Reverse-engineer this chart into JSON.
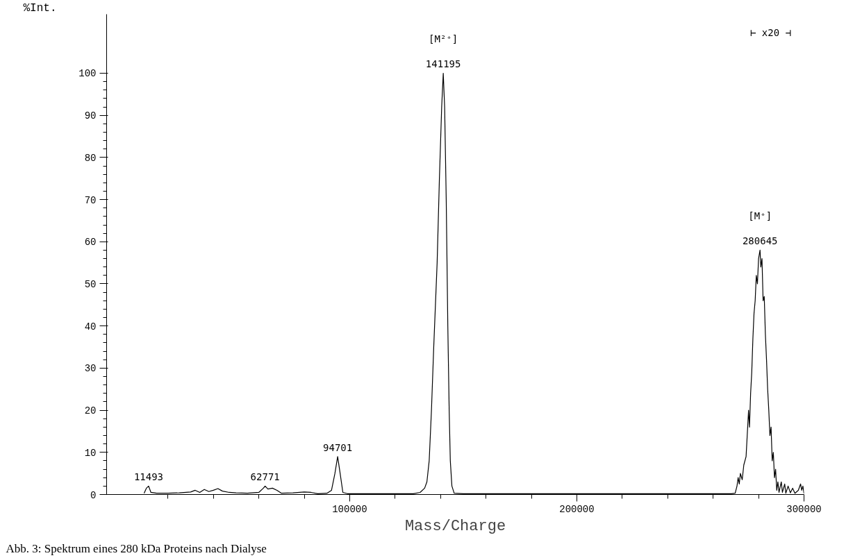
{
  "chart_data": {
    "type": "line",
    "xlabel": "Mass/Charge",
    "ylabel": "%Int.",
    "x": [
      9500,
      10500,
      11493,
      12500,
      15000,
      20000,
      25000,
      30000,
      32000,
      34000,
      36000,
      38000,
      40000,
      42000,
      44000,
      47000,
      50000,
      55000,
      60000,
      62000,
      62771,
      64000,
      66000,
      68000,
      70000,
      75000,
      80000,
      83000,
      86000,
      90000,
      92000,
      93500,
      94701,
      95800,
      97000,
      99000,
      110000,
      120000,
      128000,
      131000,
      133000,
      134000,
      135000,
      136000,
      137000,
      138500,
      139500,
      140500,
      141195,
      141800,
      142500,
      143200,
      143800,
      144300,
      145000,
      146000,
      150000,
      175000,
      200000,
      250000,
      268000,
      269700,
      270500,
      271000,
      271500,
      272000,
      272800,
      273500,
      274500,
      275000,
      275600,
      276000,
      276500,
      277000,
      277500,
      278000,
      278500,
      279000,
      279500,
      280000,
      280645,
      281000,
      281500,
      282000,
      282500,
      283000,
      283500,
      284000,
      284500,
      285000,
      285500,
      286000,
      286500,
      287000,
      287500,
      288000,
      288500,
      289000,
      290000,
      290500,
      291500,
      292000,
      293000,
      294000,
      295000,
      296000,
      297500,
      298500,
      299000,
      299500,
      300000
    ],
    "series": [
      {
        "color": "#000000",
        "values": [
          0.3,
          1.5,
          2.0,
          0.5,
          0.3,
          0.3,
          0.4,
          0.6,
          1.0,
          0.5,
          1.2,
          0.7,
          1.0,
          1.4,
          0.8,
          0.5,
          0.4,
          0.3,
          0.5,
          1.5,
          2.0,
          1.3,
          1.5,
          1.0,
          0.3,
          0.4,
          0.6,
          0.5,
          0.2,
          0.3,
          1.0,
          5.0,
          9.0,
          5.0,
          0.5,
          0.2,
          0.2,
          0.2,
          0.2,
          0.5,
          1.5,
          3,
          8,
          20,
          35,
          55,
          75,
          92,
          100,
          92,
          70,
          40,
          20,
          8,
          2,
          0.3,
          0.2,
          0.2,
          0.2,
          0.2,
          0.2,
          0.3,
          2,
          4,
          2.5,
          5,
          3.5,
          7,
          9,
          14,
          20,
          16,
          24,
          29,
          37,
          43,
          46,
          52,
          50,
          56,
          58,
          54,
          56,
          46,
          47,
          38,
          32,
          25,
          20,
          14,
          16,
          8,
          10,
          4,
          6,
          1,
          3,
          0.5,
          3,
          0.5,
          2.5,
          0.3,
          2,
          0.4,
          1.5,
          0.3,
          1,
          2.5,
          1,
          2,
          0.2
        ]
      }
    ],
    "xlim": [
      -7000,
      300000
    ],
    "xticks": [
      {
        "value": 20000,
        "label": null
      },
      {
        "value": 40000,
        "label": null
      },
      {
        "value": 60000,
        "label": null
      },
      {
        "value": 80000,
        "label": null
      },
      100000,
      {
        "value": 120000,
        "label": null
      },
      {
        "value": 140000,
        "label": null
      },
      {
        "value": 160000,
        "label": null
      },
      {
        "value": 180000,
        "label": null
      },
      200000,
      {
        "value": 220000,
        "label": null
      },
      {
        "value": 240000,
        "label": null
      },
      {
        "value": 260000,
        "label": null
      },
      {
        "value": 280000,
        "label": null
      },
      300000
    ],
    "ylim": [
      0,
      114
    ],
    "yticks": [
      0,
      {
        "value": 2,
        "label": null
      },
      {
        "value": 4,
        "label": null
      },
      {
        "value": 6,
        "label": null
      },
      {
        "value": 8,
        "label": null
      },
      10,
      {
        "value": 12,
        "label": null
      },
      {
        "value": 14,
        "label": null
      },
      {
        "value": 16,
        "label": null
      },
      {
        "value": 18,
        "label": null
      },
      20,
      {
        "value": 22,
        "label": null
      },
      {
        "value": 24,
        "label": null
      },
      {
        "value": 26,
        "label": null
      },
      {
        "value": 28,
        "label": null
      },
      30,
      {
        "value": 32,
        "label": null
      },
      {
        "value": 34,
        "label": null
      },
      {
        "value": 36,
        "label": null
      },
      {
        "value": 38,
        "label": null
      },
      40,
      {
        "value": 42,
        "label": null
      },
      {
        "value": 44,
        "label": null
      },
      {
        "value": 46,
        "label": null
      },
      {
        "value": 48,
        "label": null
      },
      50,
      {
        "value": 52,
        "label": null
      },
      {
        "value": 54,
        "label": null
      },
      {
        "value": 56,
        "label": null
      },
      {
        "value": 58,
        "label": null
      },
      60,
      {
        "value": 62,
        "label": null
      },
      {
        "value": 64,
        "label": null
      },
      {
        "value": 66,
        "label": null
      },
      {
        "value": 68,
        "label": null
      },
      70,
      {
        "value": 72,
        "label": null
      },
      {
        "value": 74,
        "label": null
      },
      {
        "value": 76,
        "label": null
      },
      {
        "value": 78,
        "label": null
      },
      80,
      {
        "value": 82,
        "label": null
      },
      {
        "value": 84,
        "label": null
      },
      {
        "value": 86,
        "label": null
      },
      {
        "value": 88,
        "label": null
      },
      90,
      {
        "value": 92,
        "label": null
      },
      {
        "value": 94,
        "label": null
      },
      {
        "value": 96,
        "label": null
      },
      {
        "value": 98,
        "label": null
      },
      100
    ],
    "annotations": [
      "⊢ x20 ⊣",
      {
        "text": "11493",
        "x": 11493,
        "y": 2.0
      },
      {
        "text": "62771",
        "x": 62771,
        "y": 2.0
      },
      {
        "text": "94701",
        "x": 94701,
        "y": 9.0
      },
      {
        "text": "141195",
        "x": 141195,
        "y": 100
      },
      {
        "text": "[M²⁺]",
        "x": 141195,
        "y": 100
      },
      {
        "text": "280645",
        "x": 280645,
        "y": 58
      },
      {
        "text": "[M⁺]",
        "x": 280645,
        "y": 58
      },
      "Abb. 3: Spektrum eines 280 kDa Proteins nach Dialyse"
    ],
    "grid": false,
    "marker": "none",
    "line_style": "solid"
  }
}
